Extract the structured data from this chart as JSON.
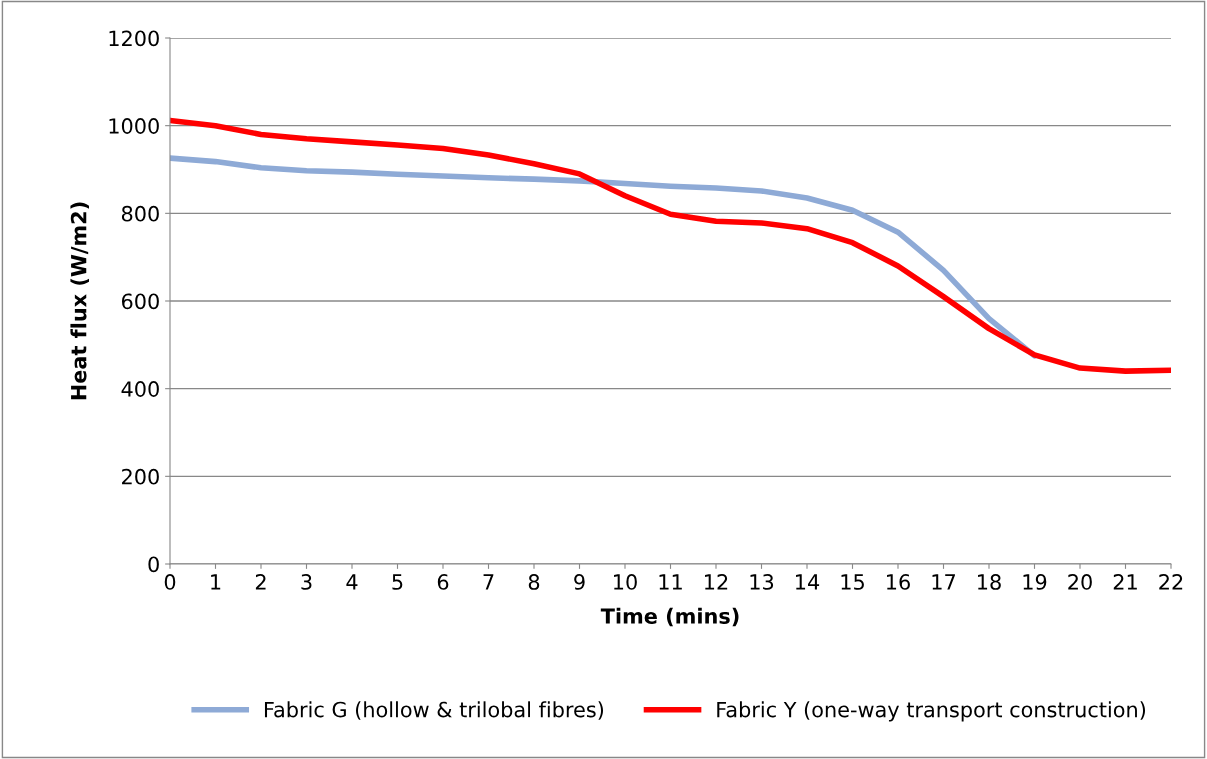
{
  "chart_data": {
    "type": "line",
    "xlabel": "Time (mins)",
    "ylabel": "Heat flux (W/m2)",
    "categories": [
      "0",
      "1",
      "2",
      "3",
      "4",
      "5",
      "6",
      "7",
      "8",
      "9",
      "10",
      "11",
      "12",
      "13",
      "14",
      "15",
      "16",
      "17",
      "18",
      "19",
      "20",
      "21",
      "22"
    ],
    "series": [
      {
        "name": "Fabric G (hollow & trilobal fibres)",
        "color": "#8eaad6",
        "values": [
          926,
          918,
          904,
          897,
          894,
          889,
          885,
          881,
          878,
          874,
          868,
          862,
          858,
          851,
          835,
          807,
          757,
          670,
          560,
          475,
          null,
          null,
          null
        ]
      },
      {
        "name": "Fabric Y (one-way transport construction)",
        "color": "#ff0000",
        "values": [
          1012,
          1000,
          980,
          970,
          963,
          956,
          948,
          933,
          913,
          890,
          840,
          798,
          782,
          778,
          765,
          733,
          680,
          610,
          537,
          477,
          447,
          440,
          442
        ]
      }
    ],
    "ylim": [
      0,
      1200
    ],
    "yticks": [
      0,
      200,
      400,
      600,
      800,
      1000,
      1200
    ],
    "grid": "y",
    "legend": "bottom",
    "marker": "none",
    "line_style": "solid"
  }
}
